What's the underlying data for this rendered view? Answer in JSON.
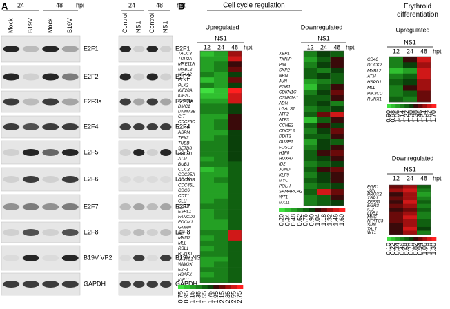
{
  "panel_a": {
    "label": "A",
    "left": {
      "times": [
        "24",
        "48"
      ],
      "time_unit": "hpi",
      "lanes": [
        "Mock",
        "B19V",
        "Mock",
        "B19V"
      ],
      "rows": [
        "E2F1",
        "E2F2",
        "E2F3a",
        "E2F4",
        "E2F5",
        "E2F6",
        "E2F7",
        "E2F8",
        "B19V VP2",
        "GAPDH"
      ]
    },
    "right": {
      "times": [
        "24",
        "48"
      ],
      "time_unit": "hpt",
      "lanes": [
        "Control",
        "NS1",
        "Control",
        "NS1"
      ],
      "rows": [
        "E2F1",
        "E2F2",
        "E2F3a",
        "E2F4",
        "E2F5",
        "E2F6",
        "E2F7",
        "E2F8",
        "B19V NS1",
        "GAPDH"
      ]
    }
  },
  "panel_b": {
    "label": "B",
    "title": "Cell cycle regulation",
    "erythroid_title": "Erythroid differentiation",
    "heatmap_colors": [
      "#40e040",
      "#30c030",
      "#24a024",
      "#1a801a",
      "#106010",
      "#0a400a",
      "#3a0a0a",
      "#6a0a0a",
      "#a01010",
      "#d01818",
      "#ff2020"
    ],
    "heatmaps": [
      {
        "title": "Upregulated",
        "group": "NS1",
        "timepoints": [
          "12",
          "24",
          "48"
        ],
        "time_unit": "hpt",
        "genes": [
          "TACC3",
          "TOP2A",
          "MRE11A",
          "MYBL2",
          "NR4A2",
          "PLK1",
          "PLK2",
          "KIF20A",
          "KIF2C",
          "KPNA2",
          "DMC1",
          "DNMT3B",
          "CIT",
          "CDC25C",
          "CD40",
          "ASPM",
          "TPX2",
          "TUBB",
          "SETD8",
          "ERCC1",
          "ATM",
          "BUB3",
          "CDC2",
          "CDC25A",
          "CDC25B",
          "CDC45L",
          "CDC6",
          "CDT1",
          "CLU",
          "ECT2",
          "ESPL1",
          "FANCD2",
          "FOCM1",
          "GMNN",
          "ID4",
          "MKI67",
          "MLL",
          "RBL1",
          "RUNX1",
          "UHRG1",
          "WWOX",
          "E2F1",
          "H2AFX",
          "KIF11"
        ],
        "levels": [
          [
            1,
            2,
            8
          ],
          [
            2,
            2,
            9
          ],
          [
            2,
            3,
            6
          ],
          [
            2,
            3,
            7
          ],
          [
            3,
            2,
            5
          ],
          [
            1,
            2,
            7
          ],
          [
            3,
            2,
            5
          ],
          [
            0,
            1,
            10
          ],
          [
            1,
            1,
            9
          ],
          [
            2,
            2,
            9
          ],
          [
            3,
            3,
            5
          ],
          [
            3,
            3,
            5
          ],
          [
            2,
            2,
            6
          ],
          [
            2,
            3,
            6
          ],
          [
            2,
            3,
            6
          ],
          [
            2,
            2,
            5
          ],
          [
            2,
            3,
            5
          ],
          [
            3,
            3,
            5
          ],
          [
            3,
            3,
            5
          ],
          [
            3,
            3,
            5
          ],
          [
            2,
            3,
            5
          ],
          [
            3,
            3,
            4
          ],
          [
            1,
            2,
            4
          ],
          [
            2,
            2,
            4
          ],
          [
            2,
            3,
            4
          ],
          [
            2,
            2,
            4
          ],
          [
            2,
            2,
            4
          ],
          [
            2,
            2,
            4
          ],
          [
            2,
            3,
            4
          ],
          [
            3,
            3,
            4
          ],
          [
            2,
            3,
            4
          ],
          [
            2,
            3,
            4
          ],
          [
            2,
            2,
            4
          ],
          [
            2,
            2,
            4
          ],
          [
            3,
            3,
            9
          ],
          [
            2,
            3,
            9
          ],
          [
            3,
            3,
            4
          ],
          [
            2,
            3,
            4
          ],
          [
            3,
            3,
            4
          ],
          [
            2,
            2,
            4
          ],
          [
            2,
            3,
            4
          ],
          [
            3,
            3,
            4
          ],
          [
            2,
            3,
            4
          ],
          [
            3,
            3,
            4
          ]
        ],
        "scale_labels": [
          "0.75",
          "0.95",
          "1.15",
          "1.35",
          "1.55",
          "1.75",
          "1.95",
          "2.15",
          "2.35",
          "2.55",
          "2.75"
        ]
      },
      {
        "title": "Downregulated",
        "group": "NS1",
        "timepoints": [
          "12",
          "24",
          "48"
        ],
        "time_unit": "hpt",
        "genes": [
          "XBP1",
          "TXNIP",
          "PIN",
          "SKP2",
          "NBN",
          "JUN",
          "EGR1",
          "CDKN1C",
          "CSNK1A1",
          "ADM",
          "LGALS1",
          "ATF2",
          "ATF3",
          "CCNE2",
          "CDC2L6",
          "DDIT3",
          "DUSP1",
          "FOSL2",
          "H1F0",
          "HOXA7",
          "ID2",
          "JUND",
          "KLF9",
          "MYC",
          "POLH",
          "SAMARCA2",
          "WT1",
          "MX11"
        ],
        "levels": [
          [
            3,
            5,
            4
          ],
          [
            2,
            4,
            6
          ],
          [
            3,
            5,
            6
          ],
          [
            4,
            3,
            5
          ],
          [
            4,
            5,
            4
          ],
          [
            2,
            3,
            4
          ],
          [
            1,
            4,
            6
          ],
          [
            3,
            5,
            7
          ],
          [
            4,
            4,
            6
          ],
          [
            4,
            5,
            3
          ],
          [
            3,
            4,
            5
          ],
          [
            4,
            7,
            9
          ],
          [
            1,
            4,
            6
          ],
          [
            4,
            6,
            5
          ],
          [
            3,
            5,
            7
          ],
          [
            4,
            4,
            6
          ],
          [
            2,
            5,
            4
          ],
          [
            3,
            5,
            6
          ],
          [
            4,
            6,
            7
          ],
          [
            4,
            5,
            6
          ],
          [
            3,
            4,
            5
          ],
          [
            4,
            6,
            7
          ],
          [
            3,
            5,
            6
          ],
          [
            4,
            5,
            6
          ],
          [
            3,
            4,
            5
          ],
          [
            4,
            9,
            7
          ],
          [
            3,
            4,
            6
          ],
          [
            3,
            4,
            5
          ]
        ],
        "scale_labels": [
          "0.20",
          "0.34",
          "0.48",
          "0.62",
          "0.76",
          "0.90",
          "1.04",
          "1.18",
          "1.32",
          "1.46",
          "1.60"
        ]
      },
      {
        "title": "Upregulated",
        "group": "NS1",
        "timepoints": [
          "12",
          "24",
          "48"
        ],
        "time_unit": "hpt",
        "genes": [
          "CD40",
          "DOCK2",
          "MYBL2",
          "ATM",
          "HSPD1",
          "MLL",
          "PIK3CD",
          "RUNX1"
        ],
        "levels": [
          [
            3,
            6,
            9
          ],
          [
            3,
            5,
            8
          ],
          [
            1,
            2,
            9
          ],
          [
            3,
            4,
            9
          ],
          [
            4,
            5,
            8
          ],
          [
            3,
            6,
            8
          ],
          [
            3,
            4,
            7
          ],
          [
            4,
            3,
            7
          ]
        ],
        "scale_labels": [
          "0.90",
          "0.98",
          "1.06",
          "1.14",
          "1.22",
          "1.30",
          "1.38",
          "1.46",
          "1.54",
          "1.62",
          "1.70"
        ]
      },
      {
        "title": "Downregulated",
        "group": "NS1",
        "timepoints": [
          "12",
          "24",
          "48"
        ],
        "time_unit": "hpt",
        "genes": [
          "EGR1",
          "JUN",
          "PROX2",
          "XBP1",
          "ZFP36",
          "EGR3",
          "ID2",
          "LDB1",
          "MYC",
          "NFATC3",
          "SPN",
          "TAL1",
          "WT1"
        ],
        "levels": [
          [
            7,
            8,
            4
          ],
          [
            8,
            9,
            3
          ],
          [
            6,
            8,
            2
          ],
          [
            7,
            8,
            3
          ],
          [
            6,
            9,
            4
          ],
          [
            7,
            8,
            3
          ],
          [
            6,
            7,
            4
          ],
          [
            7,
            8,
            3
          ],
          [
            7,
            9,
            3
          ],
          [
            7,
            8,
            4
          ],
          [
            6,
            8,
            4
          ],
          [
            6,
            9,
            5
          ],
          [
            6,
            8,
            3
          ]
        ],
        "scale_labels": [
          "0.10",
          "0.22",
          "0.34",
          "0.46",
          "0.58",
          "0.70",
          "0.82",
          "0.94",
          "1.06",
          "1.18",
          "1.30"
        ]
      }
    ]
  }
}
